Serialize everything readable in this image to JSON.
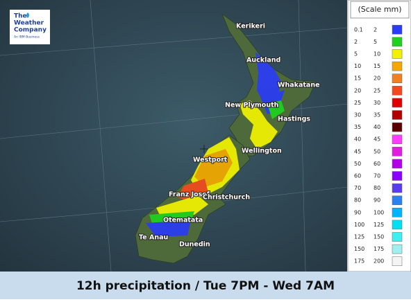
{
  "logo": {
    "line1": "The",
    "line2": "Weather",
    "line3": "Company",
    "tagline": "An IBM Business"
  },
  "cities": [
    "Kerikeri",
    "Auckland",
    "Whakatane",
    "New Plymouth",
    "Hastings",
    "Wellington",
    "Westport",
    "Franz Josef",
    "Christchurch",
    "Otematata",
    "Te Anau",
    "Dunedin"
  ],
  "legend": {
    "title": "(Scale mm)",
    "rows": [
      {
        "from": "0.1",
        "to": "2",
        "color": "#2a3cf5"
      },
      {
        "from": "2",
        "to": "5",
        "color": "#1ed21e"
      },
      {
        "from": "5",
        "to": "10",
        "color": "#f2f200"
      },
      {
        "from": "10",
        "to": "15",
        "color": "#f2a800"
      },
      {
        "from": "15",
        "to": "20",
        "color": "#f28020"
      },
      {
        "from": "20",
        "to": "25",
        "color": "#f24a1e"
      },
      {
        "from": "25",
        "to": "30",
        "color": "#e00000"
      },
      {
        "from": "30",
        "to": "35",
        "color": "#b00000"
      },
      {
        "from": "35",
        "to": "40",
        "color": "#5a0000"
      },
      {
        "from": "40",
        "to": "45",
        "color": "#ff3cff"
      },
      {
        "from": "45",
        "to": "50",
        "color": "#e01ee0"
      },
      {
        "from": "50",
        "to": "60",
        "color": "#b400e6"
      },
      {
        "from": "60",
        "to": "70",
        "color": "#8c00ff"
      },
      {
        "from": "70",
        "to": "80",
        "color": "#5a3cf0"
      },
      {
        "from": "80",
        "to": "90",
        "color": "#2882f0"
      },
      {
        "from": "90",
        "to": "100",
        "color": "#00b4ff"
      },
      {
        "from": "100",
        "to": "125",
        "color": "#00e0f0"
      },
      {
        "from": "125",
        "to": "150",
        "color": "#3cf0f0"
      },
      {
        "from": "150",
        "to": "175",
        "color": "#a0f0f0"
      },
      {
        "from": "175",
        "to": "200",
        "color": "#f4f4f4"
      }
    ]
  },
  "caption": "12h precipitation / Tue 7PM - Wed 7AM"
}
